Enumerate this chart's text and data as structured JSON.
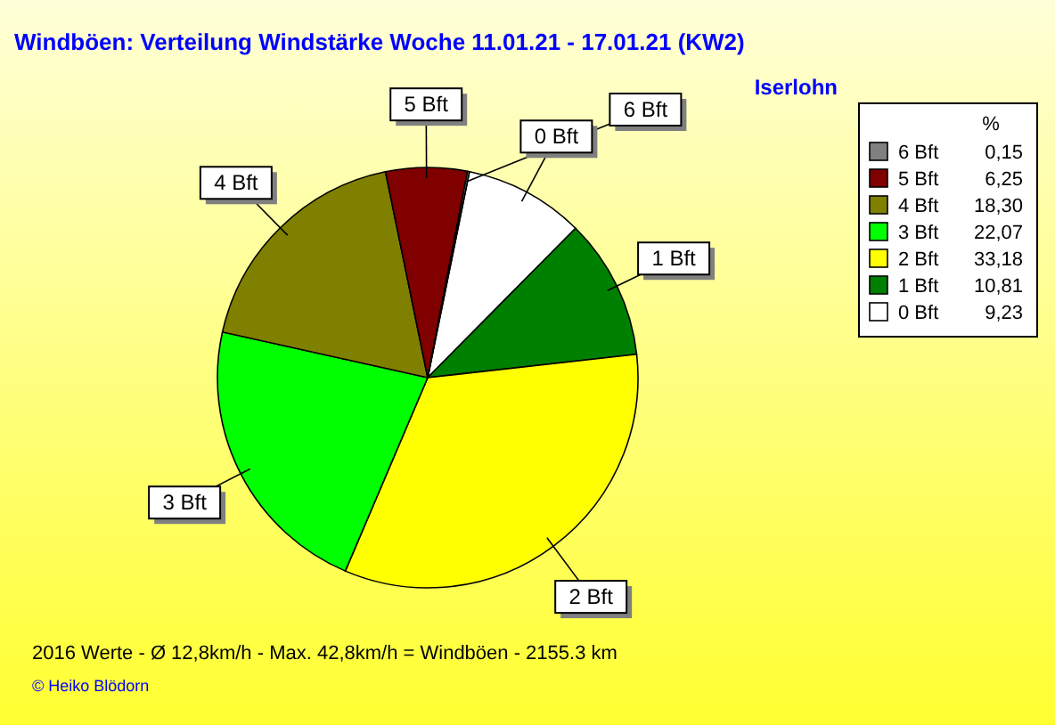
{
  "chart_data": {
    "type": "pie",
    "title": "Windböen: Verteilung Windstärke  Woche 11.01.21 - 17.01.21 (KW2)",
    "subtitle": "Iserlohn",
    "legend_title": "%",
    "categories": [
      "0 Bft",
      "1 Bft",
      "2 Bft",
      "3 Bft",
      "4 Bft",
      "5 Bft",
      "6 Bft"
    ],
    "values": [
      9.23,
      10.81,
      33.18,
      22.07,
      18.3,
      6.25,
      0.15
    ],
    "value_labels": [
      "9,23",
      "10,81",
      "33,18",
      "22,07",
      "18,30",
      "6,25",
      "0,15"
    ],
    "colors": [
      "#ffffff",
      "#008000",
      "#ffff00",
      "#00ff00",
      "#808000",
      "#800000",
      "#808080"
    ],
    "legend": "top right",
    "annotations": [
      "2016 Werte   -   Ø 12,8km/h  -  Max. 42,8km/h = Windböen   -   2155.3 km",
      "© Heiko Blödorn"
    ]
  }
}
